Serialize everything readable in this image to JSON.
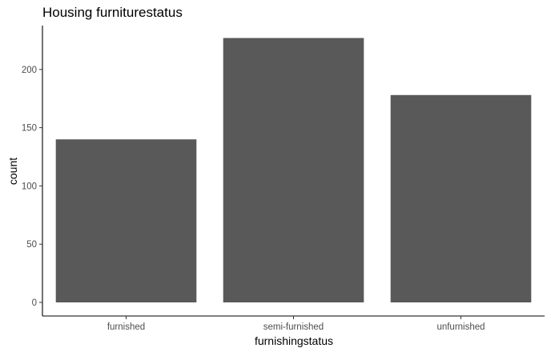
{
  "chart_data": {
    "type": "bar",
    "title": "Housing furniturestatus",
    "xlabel": "furnishingstatus",
    "ylabel": "count",
    "categories": [
      "furnished",
      "semi-furnished",
      "unfurnished"
    ],
    "values": [
      140,
      227,
      178
    ],
    "ylim": [
      0,
      227
    ],
    "yticks": [
      0,
      50,
      100,
      150,
      200
    ],
    "grid": false,
    "legend": "none",
    "colors": {
      "bar": "#595959",
      "axis": "#000000",
      "tick_text": "#4d4d4d"
    }
  }
}
